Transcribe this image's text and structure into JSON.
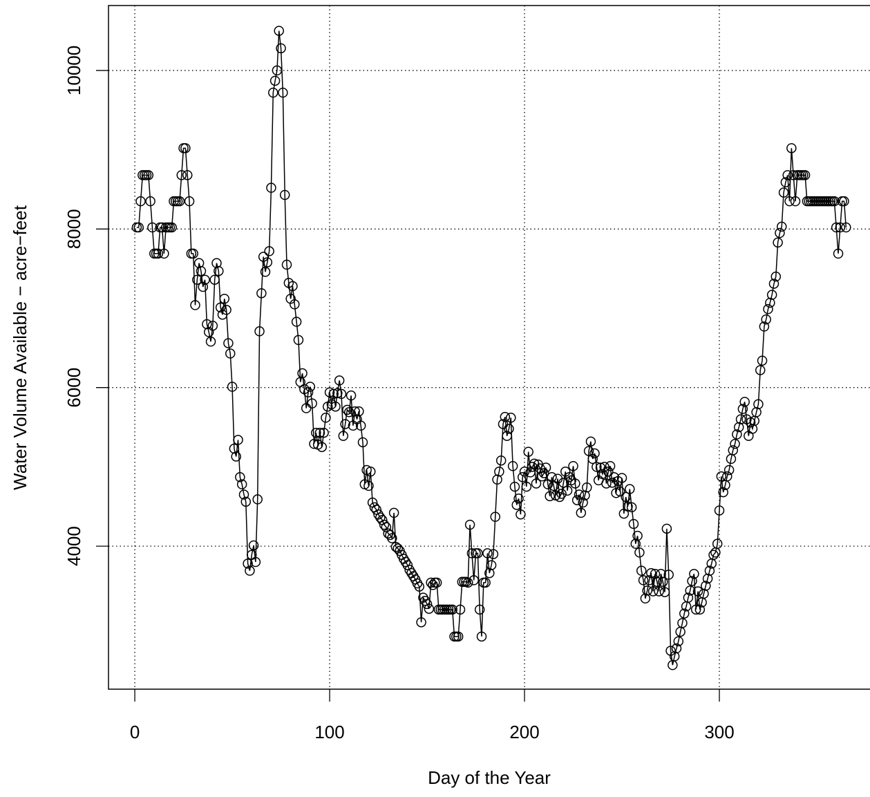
{
  "chart_data": {
    "type": "line",
    "xlabel": "Day of the Year",
    "ylabel": "Water Volume Available − acre−feet",
    "xlim": [
      -13.5,
      377.3
    ],
    "ylim": [
      2196,
      10819
    ],
    "xticks": [
      0,
      100,
      200,
      300
    ],
    "yticks": [
      4000,
      6000,
      8000,
      10000
    ],
    "grid": true,
    "color": "#000000",
    "marker": "open-circle",
    "x": [
      1,
      2,
      3,
      4,
      5,
      6,
      7,
      8,
      9,
      10,
      11,
      12,
      13,
      14,
      15,
      16,
      17,
      18,
      19,
      20,
      21,
      22,
      23,
      24,
      25,
      26,
      27,
      28,
      29,
      30,
      31,
      32,
      33,
      34,
      35,
      36,
      37,
      38,
      39,
      40,
      41,
      42,
      43,
      44,
      45,
      46,
      47,
      48,
      49,
      50,
      51,
      52,
      53,
      54,
      55,
      56,
      57,
      58,
      59,
      60,
      61,
      62,
      63,
      64,
      65,
      66,
      67,
      68,
      69,
      70,
      71,
      72,
      73,
      74,
      75,
      76,
      77,
      78,
      79,
      80,
      81,
      82,
      83,
      84,
      85,
      86,
      87,
      88,
      89,
      90,
      91,
      92,
      93,
      94,
      95,
      96,
      97,
      98,
      99,
      100,
      101,
      102,
      103,
      104,
      105,
      106,
      107,
      108,
      109,
      110,
      111,
      112,
      113,
      114,
      115,
      116,
      117,
      118,
      119,
      120,
      121,
      122,
      123,
      124,
      125,
      126,
      127,
      128,
      129,
      130,
      131,
      132,
      133,
      134,
      135,
      136,
      137,
      138,
      139,
      140,
      141,
      142,
      143,
      144,
      145,
      146,
      147,
      148,
      149,
      150,
      151,
      152,
      153,
      154,
      155,
      156,
      157,
      158,
      159,
      160,
      161,
      162,
      163,
      164,
      165,
      166,
      167,
      168,
      169,
      170,
      171,
      172,
      173,
      174,
      175,
      176,
      177,
      178,
      179,
      180,
      181,
      182,
      183,
      184,
      185,
      186,
      187,
      188,
      189,
      190,
      191,
      192,
      193,
      194,
      195,
      196,
      197,
      198,
      199,
      200,
      201,
      202,
      203,
      204,
      205,
      206,
      207,
      208,
      209,
      210,
      211,
      212,
      213,
      214,
      215,
      216,
      217,
      218,
      219,
      220,
      221,
      222,
      223,
      224,
      225,
      226,
      227,
      228,
      229,
      230,
      231,
      232,
      233,
      234,
      235,
      236,
      237,
      238,
      239,
      240,
      241,
      242,
      243,
      244,
      245,
      246,
      247,
      248,
      249,
      250,
      251,
      252,
      253,
      254,
      255,
      256,
      257,
      258,
      259,
      260,
      261,
      262,
      263,
      264,
      265,
      266,
      267,
      268,
      269,
      270,
      271,
      272,
      273,
      274,
      275,
      276,
      277,
      278,
      279,
      280,
      281,
      282,
      283,
      284,
      285,
      286,
      287,
      288,
      289,
      290,
      291,
      292,
      293,
      294,
      295,
      296,
      297,
      298,
      299,
      300,
      301,
      302,
      303,
      304,
      305,
      306,
      307,
      308,
      309,
      310,
      311,
      312,
      313,
      314,
      315,
      316,
      317,
      318,
      319,
      320,
      321,
      322,
      323,
      324,
      325,
      326,
      327,
      328,
      329,
      330,
      331,
      332,
      333,
      334,
      335,
      336,
      337,
      338,
      339,
      340,
      341,
      342,
      343,
      344,
      345,
      346,
      347,
      348,
      349,
      350,
      351,
      352,
      353,
      354,
      355,
      356,
      357,
      358,
      359,
      360,
      361,
      362,
      363,
      364,
      365
    ],
    "values": [
      8020,
      8020,
      8350,
      8680,
      8680,
      8680,
      8680,
      8350,
      8020,
      7690,
      7690,
      7690,
      8020,
      8020,
      7690,
      8020,
      8020,
      8020,
      8020,
      8350,
      8350,
      8350,
      8350,
      8680,
      9020,
      9020,
      8680,
      8350,
      7690,
      7690,
      7040,
      7360,
      7570,
      7470,
      7270,
      7360,
      6800,
      6700,
      6580,
      6780,
      7360,
      7570,
      7470,
      7010,
      6920,
      7120,
      6980,
      6560,
      6430,
      6010,
      5230,
      5130,
      5340,
      4870,
      4780,
      4650,
      4560,
      3780,
      3690,
      3890,
      4010,
      3800,
      4590,
      6710,
      7190,
      7650,
      7460,
      7580,
      7720,
      8520,
      9720,
      9870,
      10000,
      10500,
      10280,
      9720,
      8430,
      7550,
      7320,
      7120,
      7280,
      7050,
      6830,
      6600,
      6070,
      6180,
      5980,
      5740,
      5940,
      6010,
      5800,
      5290,
      5430,
      5280,
      5430,
      5250,
      5430,
      5620,
      5760,
      5940,
      5790,
      5920,
      5760,
      5930,
      6090,
      5920,
      5390,
      5540,
      5720,
      5690,
      5900,
      5520,
      5700,
      5600,
      5700,
      5520,
      5310,
      4780,
      4960,
      4760,
      4940,
      4550,
      4490,
      4460,
      4400,
      4360,
      4330,
      4270,
      4240,
      4160,
      4140,
      4100,
      4420,
      3990,
      3970,
      3940,
      3890,
      3840,
      3800,
      3760,
      3700,
      3660,
      3620,
      3580,
      3530,
      3490,
      3040,
      3350,
      3310,
      3270,
      3210,
      3540,
      3510,
      3540,
      3540,
      3200,
      3200,
      3200,
      3200,
      3200,
      3200,
      3200,
      3200,
      2860,
      2860,
      2860,
      3200,
      3550,
      3550,
      3550,
      3540,
      4270,
      3910,
      3570,
      3910,
      3910,
      3200,
      2860,
      3540,
      3540,
      3910,
      3660,
      3760,
      3900,
      4370,
      4840,
      4940,
      5080,
      5540,
      5630,
      5390,
      5480,
      5620,
      5010,
      4750,
      4520,
      4600,
      4400,
      4870,
      4940,
      4750,
      5190,
      4930,
      5000,
      5040,
      4790,
      5030,
      4980,
      4880,
      4920,
      4990,
      4780,
      4630,
      4870,
      4760,
      4640,
      4850,
      4620,
      4660,
      4800,
      4940,
      4700,
      4870,
      4830,
      5010,
      4790,
      4580,
      4650,
      4420,
      4550,
      4640,
      4740,
      5200,
      5320,
      5100,
      5170,
      5000,
      4830,
      4990,
      4910,
      5000,
      4790,
      4940,
      5010,
      4800,
      4870,
      4670,
      4820,
      4690,
      4860,
      4410,
      4620,
      4500,
      4720,
      4490,
      4280,
      4030,
      4130,
      3920,
      3690,
      3570,
      3340,
      3440,
      3570,
      3660,
      3430,
      3650,
      3550,
      3430,
      3650,
      3550,
      3420,
      4220,
      3640,
      2680,
      2500,
      2610,
      2710,
      2800,
      2920,
      3030,
      3150,
      3240,
      3350,
      3440,
      3560,
      3650,
      3200,
      3430,
      3200,
      3290,
      3400,
      3500,
      3590,
      3690,
      3780,
      3890,
      3920,
      4030,
      4450,
      4880,
      4680,
      4770,
      4880,
      4960,
      5100,
      5210,
      5290,
      5410,
      5500,
      5600,
      5730,
      5820,
      5600,
      5390,
      5560,
      5480,
      5580,
      5690,
      5790,
      6220,
      6340,
      6770,
      6860,
      6990,
      7070,
      7170,
      7310,
      7400,
      7830,
      7950,
      8030,
      8460,
      8590,
      8680,
      8350,
      9020,
      8680,
      8350,
      8680,
      8680,
      8680,
      8680,
      8680,
      8350,
      8350,
      8350,
      8350,
      8350,
      8350,
      8350,
      8350,
      8350,
      8350,
      8350,
      8350,
      8350,
      8350,
      8350,
      8020,
      7690,
      8020,
      8350,
      8350,
      8020
    ]
  }
}
